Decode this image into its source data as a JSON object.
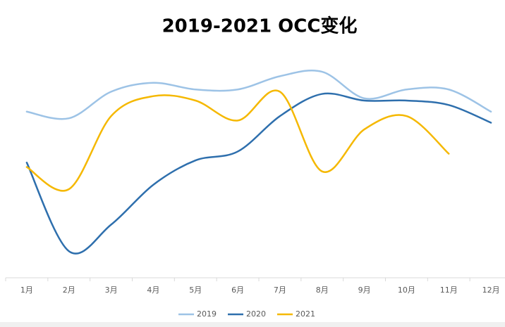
{
  "chart_data": {
    "type": "line",
    "title": "2019-2021 OCC变化",
    "categories": [
      "1月",
      "2月",
      "3月",
      "4月",
      "5月",
      "6月",
      "7月",
      "8月",
      "9月",
      "10月",
      "11月",
      "12月"
    ],
    "series": [
      {
        "name": "2019",
        "color": "#9dc3e6",
        "values": [
          75,
          72,
          84,
          88,
          85,
          85,
          91,
          93,
          81,
          85,
          85,
          75
        ]
      },
      {
        "name": "2020",
        "color": "#2e6fad",
        "values": [
          52,
          12,
          24,
          42,
          53,
          57,
          73,
          83,
          80,
          80,
          78,
          70
        ]
      },
      {
        "name": "2021",
        "color": "#f5b800",
        "values": [
          50,
          40,
          73,
          82,
          80,
          71,
          84,
          48,
          67,
          73,
          56,
          null
        ]
      }
    ],
    "ylim": [
      0,
      100
    ],
    "smooth": true
  }
}
